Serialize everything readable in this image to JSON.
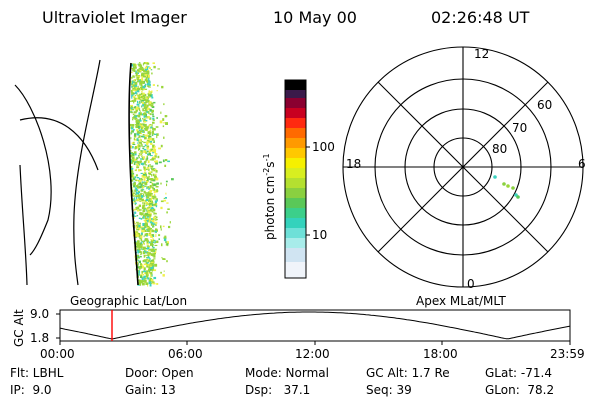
{
  "header": {
    "instrument": "Ultraviolet Imager",
    "date": "10 May 00",
    "time": "02:26:48 UT"
  },
  "colorbar": {
    "label_main": "photon cm",
    "label_exp1": "-2",
    "label_mid": "s",
    "label_exp2": "-1",
    "ticks": [
      "100",
      "10"
    ]
  },
  "polar_plot": {
    "mlt_labels": [
      "12",
      "18",
      "6",
      "0"
    ],
    "mlat_labels": [
      "60",
      "70",
      "80"
    ]
  },
  "altitude_plot": {
    "left_label": "Geographic Lat/Lon",
    "right_label": "Apex MLat/MLT",
    "axis_label": "GC Alt",
    "y_ticks": [
      "9.0",
      "1.8"
    ],
    "x_ticks": [
      "00:00",
      "06:00",
      "12:00",
      "18:00",
      "23:59"
    ],
    "current_time_hours": 2.447
  },
  "info": {
    "filter": "Flt: LBHL",
    "ip": "IP:  9.0",
    "door": "Door: Open",
    "gain": "Gain: 13",
    "mode": "Mode: Normal",
    "dsp": "Dsp:   37.1",
    "gcalt": "GC Alt: 1.7 Re",
    "seq": "Seq: 39",
    "glat": "GLat: -71.4",
    "glon": "GLon:  78.2"
  },
  "colors": {
    "emission_main": "#9ad63a",
    "emission_alt": "#f0f04a",
    "emission_low": "#3cd2c0",
    "time_marker": "#ff0000"
  }
}
